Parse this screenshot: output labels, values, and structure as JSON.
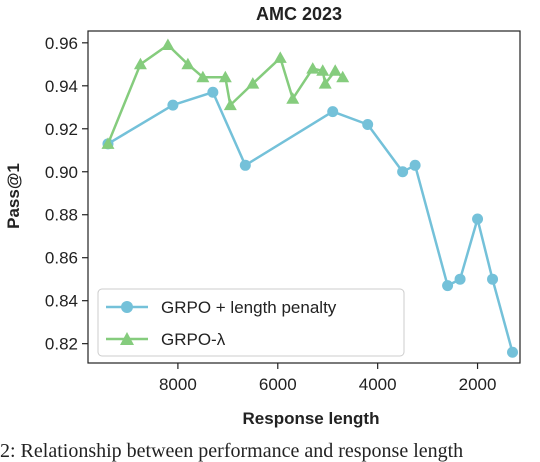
{
  "chart_data": {
    "type": "line",
    "title": "AMC 2023",
    "xlabel": "Response length",
    "ylabel": "Pass@1",
    "x_inverted": true,
    "xlim": [
      9800,
      1150
    ],
    "ylim": [
      0.811,
      0.9655
    ],
    "xticks": [
      8000,
      6000,
      4000,
      2000
    ],
    "yticks": [
      0.82,
      0.84,
      0.86,
      0.88,
      0.9,
      0.92,
      0.94,
      0.96
    ],
    "ytick_labels": [
      "0.82",
      "0.84",
      "0.86",
      "0.88",
      "0.90",
      "0.92",
      "0.94",
      "0.96"
    ],
    "legend_position": "lower-left",
    "grid": false,
    "series": [
      {
        "name": "GRPO + length penalty",
        "color": "#74c1d9",
        "marker": "circle",
        "x": [
          9400,
          8100,
          7300,
          6650,
          4900,
          4200,
          3500,
          3250,
          2600,
          2350,
          2000,
          1700,
          1300
        ],
        "y": [
          0.913,
          0.931,
          0.937,
          0.903,
          0.928,
          0.922,
          0.9,
          0.903,
          0.847,
          0.85,
          0.878,
          0.85,
          0.816
        ]
      },
      {
        "name": "GRPO-λ",
        "color": "#85cc7d",
        "marker": "triangle",
        "x": [
          9400,
          8750,
          8200,
          7800,
          7500,
          7050,
          6950,
          6500,
          5950,
          5700,
          5300,
          5100,
          5050,
          4850,
          4700
        ],
        "y": [
          0.913,
          0.95,
          0.959,
          0.95,
          0.944,
          0.944,
          0.931,
          0.941,
          0.953,
          0.934,
          0.948,
          0.947,
          0.941,
          0.947,
          0.944
        ]
      }
    ]
  },
  "caption": "2: Relationship between performance and response length"
}
